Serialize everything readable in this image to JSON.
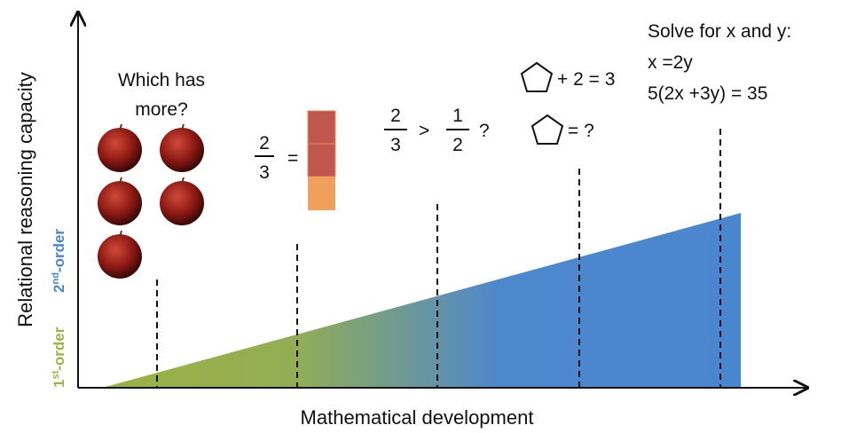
{
  "axes": {
    "y_label": "Relational reasoning capacity",
    "x_label": "Mathematical development"
  },
  "order_labels": {
    "first": {
      "number": "1",
      "suffix": "st",
      "text": "-order"
    },
    "second": {
      "number": "2",
      "suffix": "nd",
      "text": "-order"
    }
  },
  "stages": [
    {
      "lines": [
        "Which has",
        "more?"
      ]
    },
    {
      "numerator": "2",
      "denominator": "3",
      "operator": "="
    },
    {
      "left_numerator": "2",
      "left_denominator": "3",
      "operator": ">",
      "right_numerator": "1",
      "right_denominator": "2",
      "end": "?"
    },
    {
      "line1": "+ 2 = 3",
      "line2": "= ?"
    },
    {
      "lines": [
        "Solve for x and y:",
        "x =2y",
        "5(2x +3y) = 35"
      ]
    }
  ]
}
